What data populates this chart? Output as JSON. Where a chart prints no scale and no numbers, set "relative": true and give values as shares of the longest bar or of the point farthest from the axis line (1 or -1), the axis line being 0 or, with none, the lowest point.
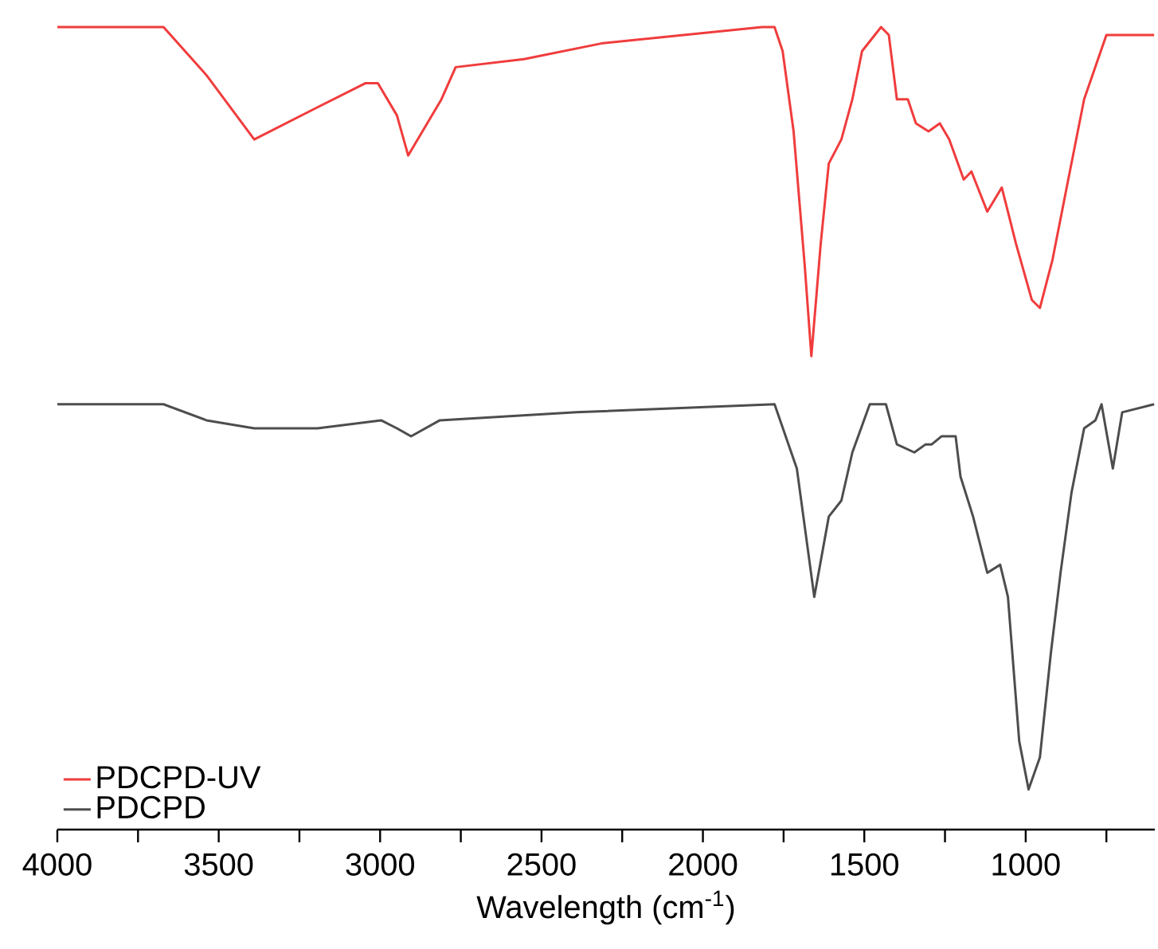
{
  "chart_data": {
    "type": "line",
    "relative": true,
    "xlabel": "Wavelength (cm$^{-1}$)",
    "xlim": [
      4000,
      600
    ],
    "xticks": [
      4000,
      {
        "value": 3750,
        "label": null
      },
      3500,
      {
        "value": 3250,
        "label": null
      },
      3000,
      {
        "value": 2750,
        "label": null
      },
      2500,
      {
        "value": 2250,
        "label": null
      },
      2000,
      {
        "value": 1750,
        "label": null
      },
      1500,
      {
        "value": 1250,
        "label": null
      },
      1000,
      {
        "value": 750,
        "label": null
      }
    ],
    "tick_labels": "x",
    "grid": false,
    "legend": "bottom left",
    "marker": "none",
    "line_style": "solid",
    "series": [
      {
        "name": "PDCPD-UV",
        "color": "#f03c3c",
        "x": [
          4000,
          3671,
          3538,
          3390,
          3194,
          3046,
          3007,
          2948,
          2913,
          2810,
          2766,
          2554,
          2309,
          1817,
          1778,
          1753,
          1719,
          1684,
          1664,
          1635,
          1610,
          1571,
          1537,
          1507,
          1448,
          1424,
          1399,
          1365,
          1340,
          1301,
          1266,
          1237,
          1192,
          1168,
          1119,
          1074,
          1030,
          981,
          956,
          917,
          873,
          819,
          750,
          720,
          676,
          602
        ],
        "values": [
          1.0,
          1.0,
          0.94,
          0.86,
          0.9,
          0.93,
          0.93,
          0.89,
          0.84,
          0.91,
          0.95,
          0.96,
          0.98,
          1.0,
          1.0,
          0.97,
          0.87,
          0.7,
          0.59,
          0.73,
          0.83,
          0.86,
          0.91,
          0.97,
          1.0,
          0.99,
          0.91,
          0.91,
          0.88,
          0.87,
          0.88,
          0.86,
          0.81,
          0.82,
          0.77,
          0.8,
          0.73,
          0.66,
          0.65,
          0.71,
          0.8,
          0.91,
          0.99,
          0.99,
          0.99,
          0.99
        ]
      },
      {
        "name": "PDCPD",
        "color": "#4d4d4d",
        "x": [
          4000,
          3671,
          3538,
          3390,
          3194,
          2997,
          2948,
          2904,
          2815,
          2392,
          1778,
          1709,
          1655,
          1610,
          1571,
          1537,
          1483,
          1433,
          1399,
          1345,
          1310,
          1291,
          1261,
          1217,
          1202,
          1163,
          1119,
          1079,
          1055,
          1020,
          991,
          956,
          922,
          892,
          858,
          819,
          784,
          765,
          730,
          701,
          602
        ],
        "values": [
          0.53,
          0.53,
          0.51,
          0.5,
          0.5,
          0.51,
          0.5,
          0.49,
          0.51,
          0.52,
          0.53,
          0.45,
          0.29,
          0.39,
          0.41,
          0.47,
          0.53,
          0.53,
          0.48,
          0.47,
          0.48,
          0.48,
          0.49,
          0.49,
          0.44,
          0.39,
          0.32,
          0.33,
          0.29,
          0.11,
          0.05,
          0.09,
          0.22,
          0.32,
          0.42,
          0.5,
          0.51,
          0.53,
          0.45,
          0.52,
          0.53
        ]
      }
    ]
  }
}
